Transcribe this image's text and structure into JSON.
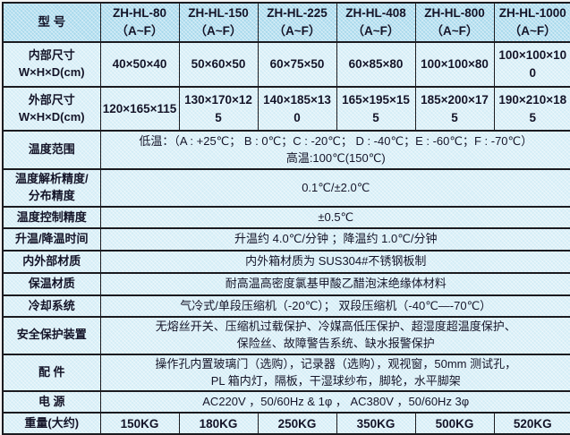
{
  "colors": {
    "header_bg": "#a8d9ec",
    "body_bg": "#d4edf6",
    "border": "#1b1b20",
    "text": "#141428"
  },
  "table": {
    "header": {
      "label": "型 号",
      "models": [
        {
          "name": "ZH-HL-80",
          "range": "（A~F）"
        },
        {
          "name": "ZH-HL-150",
          "range": "（A~F）"
        },
        {
          "name": "ZH-HL-225",
          "range": "（A~F）"
        },
        {
          "name": "ZH-HL-408",
          "range": "（A~F）"
        },
        {
          "name": "ZH-HL-800",
          "range": "（A~F）"
        },
        {
          "name": "ZH-HL-1000",
          "range": "（A~F）"
        }
      ]
    },
    "rows": [
      {
        "label": "内部尺寸",
        "label2": "W×H×D(cm)",
        "type": "cells",
        "values": [
          "40×50×40",
          "50×60×50",
          "60×75×50",
          "60×85×80",
          "100×100×80",
          "100×100×100"
        ]
      },
      {
        "label": "外部尺寸",
        "label2": "W×H×D(cm)",
        "type": "cells",
        "values": [
          "120×165×115",
          "130×170×125",
          "140×185×130",
          "165×195×155",
          "185×200×175",
          "190×210×185"
        ]
      },
      {
        "label": "温度范围",
        "type": "span",
        "lines": [
          "低温：（A : +25℃；  B : 0℃；C : -20℃；  D : -40℃；E : -60℃；F : -70℃）",
          "高温:100℃(150℃)"
        ]
      },
      {
        "label": "温度解析精度/",
        "label2": "分布精度",
        "type": "span",
        "lines": [
          "0.1℃/±2.0℃"
        ]
      },
      {
        "label": "温度控制精度",
        "type": "span",
        "lines": [
          "±0.5℃"
        ]
      },
      {
        "label": "升温/降温时间",
        "type": "span",
        "lines": [
          "升温约 4.0℃/分钟  ；降温约 1.0℃/分钟"
        ]
      },
      {
        "label": "内外部材质",
        "type": "span",
        "lines": [
          "内外箱材质为 SUS304#不锈钢板制"
        ]
      },
      {
        "label": "保温材质",
        "type": "span",
        "lines": [
          "耐高温高密度氯基甲酸乙醋泡沫绝缘体材料"
        ]
      },
      {
        "label": "冷却系统",
        "type": "span",
        "lines": [
          "气冷式/单段压缩机（-20℃）；  双段压缩机（-40℃—-70℃）"
        ]
      },
      {
        "label": "安全保护装置",
        "type": "span",
        "lines": [
          "无熔丝开关、压缩机过载保护、冷媒高低压保护、超湿度超温度保护、",
          "保险丝、故障警告系统、缺水报警保护"
        ]
      },
      {
        "label": "配 件",
        "type": "span",
        "lines": [
          "操作孔内置玻璃门（选购），记录器（选购），观视窗，50mm 测试孔，",
          "PL 箱内灯，隔板，干湿球纱布，脚轮，水平脚架"
        ]
      },
      {
        "label": "电 源",
        "type": "span",
        "lines": [
          "AC220V ，50/60Hz & 1φ ，  AC380V ，50/60Hz 3φ"
        ]
      },
      {
        "label": "重量(大约)",
        "type": "cells",
        "values": [
          "150KG",
          "180KG",
          "250KG",
          "350KG",
          "500KG",
          "520KG"
        ]
      }
    ]
  }
}
